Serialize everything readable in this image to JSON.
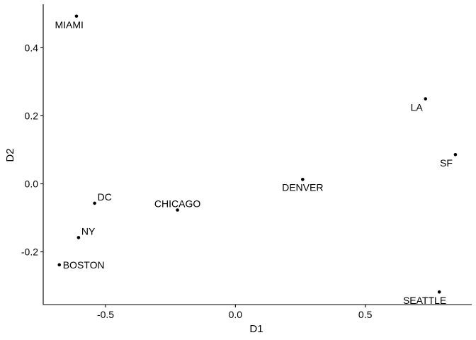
{
  "chart_data": {
    "type": "scatter",
    "title": "",
    "xlabel": "D1",
    "ylabel": "D2",
    "xlim": [
      -0.74,
      0.91
    ],
    "ylim": [
      -0.355,
      0.528
    ],
    "x_ticks": [
      -0.5,
      0.0,
      0.5
    ],
    "x_tick_labels": [
      "-0.5",
      "0.0",
      "0.5"
    ],
    "y_ticks": [
      -0.2,
      0.0,
      0.2,
      0.4
    ],
    "y_tick_labels": [
      "-0.2",
      "0.0",
      "0.2",
      "0.4"
    ],
    "grid": false,
    "legend": "none",
    "point_color": "#000000",
    "points": [
      {
        "label": "MIAMI",
        "x": -0.612,
        "y": 0.493,
        "label_pos": "below-left"
      },
      {
        "label": "LA",
        "x": 0.732,
        "y": 0.25,
        "label_pos": "below-left"
      },
      {
        "label": "SF",
        "x": 0.847,
        "y": 0.086,
        "label_pos": "below-left"
      },
      {
        "label": "DENVER",
        "x": 0.259,
        "y": 0.013,
        "label_pos": "below"
      },
      {
        "label": "DC",
        "x": -0.542,
        "y": -0.057,
        "label_pos": "above-right"
      },
      {
        "label": "CHICAGO",
        "x": -0.223,
        "y": -0.077,
        "label_pos": "above"
      },
      {
        "label": "NY",
        "x": -0.604,
        "y": -0.158,
        "label_pos": "above-right"
      },
      {
        "label": "BOSTON",
        "x": -0.678,
        "y": -0.238,
        "label_pos": "right"
      },
      {
        "label": "SEATTLE",
        "x": 0.785,
        "y": -0.318,
        "label_pos": "below-left"
      }
    ]
  }
}
